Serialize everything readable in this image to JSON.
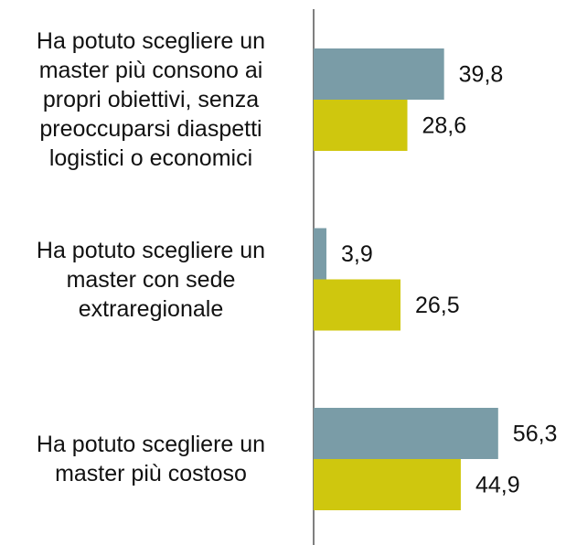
{
  "chart_data": {
    "type": "hbar",
    "categories": [
      "Ha potuto scegliere un\nmaster più consono ai\npropri obiettivi, senza\npreoccuparsi diaspetti\nlogistici o economici",
      "Ha potuto scegliere un\nmaster con sede\nextraregionale",
      "Ha potuto scegliere un\nmaster più costoso"
    ],
    "series": [
      {
        "color": "#7a9ca7",
        "values": [
          39.8,
          3.9,
          56.3
        ],
        "value_labels": [
          "39,8",
          "3,9",
          "56,3"
        ]
      },
      {
        "color": "#cfc70e",
        "values": [
          28.6,
          26.5,
          44.9
        ],
        "value_labels": [
          "28,6",
          "26,5",
          "44,9"
        ]
      }
    ],
    "xlim": [
      0,
      77
    ]
  }
}
